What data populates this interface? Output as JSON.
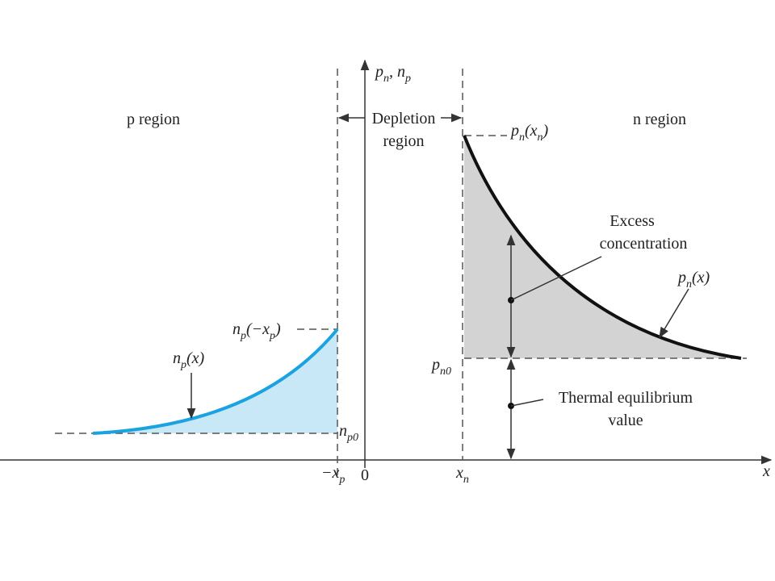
{
  "regions": {
    "p": "p region",
    "n": "n region",
    "depletion": [
      "Depletion",
      "region"
    ]
  },
  "axis": {
    "x": "x",
    "origin": "0",
    "y": [
      "p",
      "n",
      ", n",
      "p"
    ],
    "neg_xp": [
      "−x",
      "p"
    ],
    "xn": [
      "x",
      "n"
    ]
  },
  "labels": {
    "pn_xn": [
      "p",
      "n",
      "(x",
      "n",
      ")"
    ],
    "np_neg_xp": [
      "n",
      "p",
      "(−x",
      "p",
      ")"
    ],
    "np_x": [
      "n",
      "p",
      "(x)"
    ],
    "pn_x": [
      "p",
      "n",
      "(x)"
    ],
    "pn0": [
      "p",
      "n0"
    ],
    "np0": [
      "n",
      "p0"
    ]
  },
  "annotations": {
    "excess": [
      "Excess",
      "concentration"
    ],
    "thermal": [
      "Thermal equilibrium",
      "value"
    ]
  }
}
